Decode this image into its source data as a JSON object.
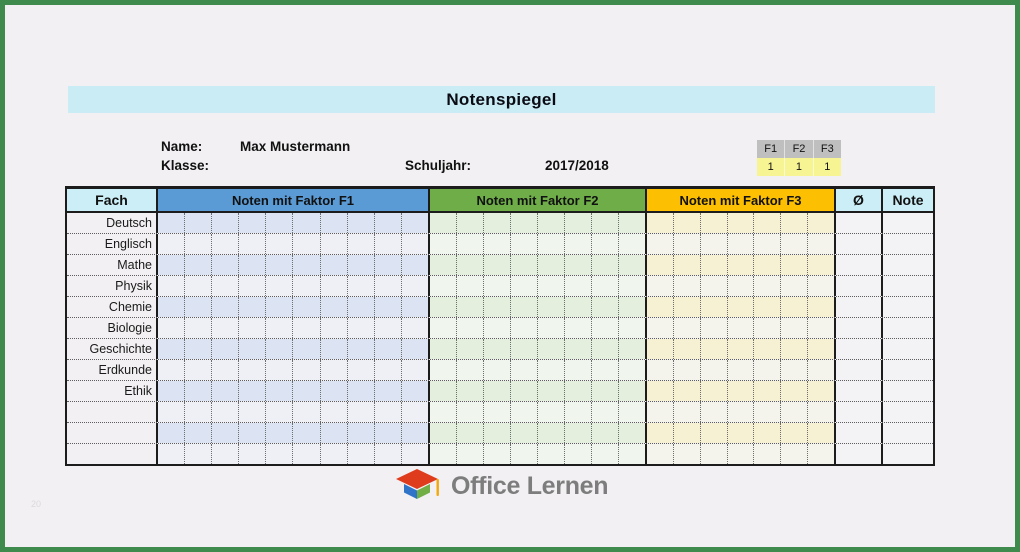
{
  "title": "Notenspiegel",
  "info": {
    "name_label": "Name:",
    "name_value": "Max Mustermann",
    "klasse_label": "Klasse:",
    "klasse_value": "",
    "schuljahr_label": "Schuljahr:",
    "schuljahr_value": "2017/2018"
  },
  "factors": {
    "headers": [
      "F1",
      "F2",
      "F3"
    ],
    "values": [
      "1",
      "1",
      "1"
    ]
  },
  "table": {
    "columns": {
      "fach": "Fach",
      "f1": "Noten mit Faktor F1",
      "f2": "Noten mit Faktor F2",
      "f3": "Noten mit Faktor F3",
      "avg": "Ø",
      "note": "Note"
    },
    "f1_subcols": 10,
    "f2_subcols": 8,
    "f3_subcols": 7,
    "subjects": [
      "Deutsch",
      "Englisch",
      "Mathe",
      "Physik",
      "Chemie",
      "Biologie",
      "Geschichte",
      "Erdkunde",
      "Ethik",
      "",
      "",
      ""
    ]
  },
  "footer": {
    "logo_text": "Office Lernen",
    "watermark": "20"
  },
  "colors": {
    "frame_green": "#3e8b4d",
    "page_bg": "#f2f0f2",
    "title_band": "#c9ecf5",
    "header_cyan": "#cceef6",
    "faktor1_blue": "#5b9bd5",
    "faktor2_green": "#6fad49",
    "faktor3_orange": "#fcbf01",
    "factor_head_gray": "#bfbfbf",
    "factor_value_yellow": "#f7f494",
    "logo_gray": "#7d7d7d",
    "logo_red": "#df3c1e",
    "logo_blue": "#2f74c9",
    "logo_green": "#71ae45",
    "logo_tassel": "#f2a80c"
  }
}
